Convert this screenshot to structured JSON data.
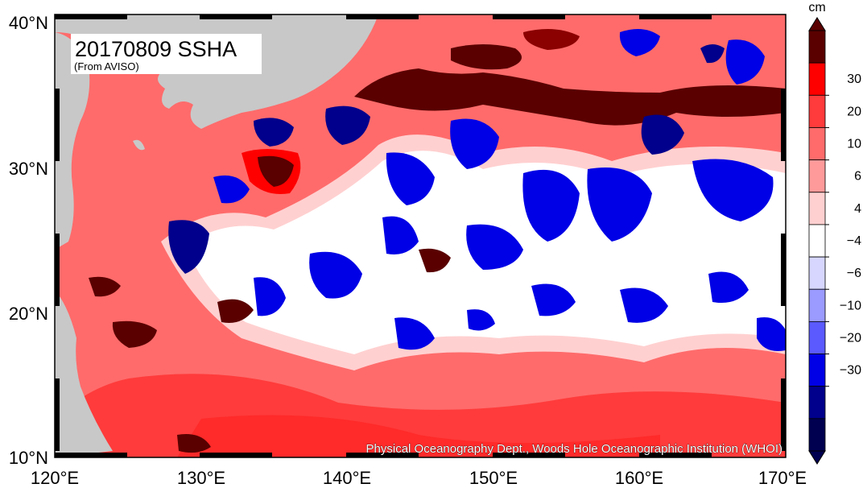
{
  "title": "20170809 SSHA",
  "source": "(From AVISO)",
  "credit": "Physical Oceanography Dept., Woods Hole Oceanographic Institution (WHOI)",
  "colorbar": {
    "unit": "cm",
    "ticks": [
      "30",
      "20",
      "10",
      "6",
      "4",
      "−4",
      "−6",
      "−10",
      "−20",
      "−30"
    ],
    "colors": [
      "#5a0000",
      "#ff0000",
      "#ff3b3b",
      "#ff6b6b",
      "#ff9a9a",
      "#ffd0d0",
      "#ffffff",
      "#d6d6ff",
      "#9a9aff",
      "#5a5aff",
      "#0000e6",
      "#00008c",
      "#000050"
    ]
  },
  "axes": {
    "lon_labels": [
      "120°E",
      "130°E",
      "140°E",
      "150°E",
      "160°E",
      "170°E"
    ],
    "lat_labels": [
      "40°N",
      "30°N",
      "20°N",
      "10°N"
    ]
  },
  "palette": {
    "land": "#c8c8c8",
    "background": "#ff6b6b"
  }
}
